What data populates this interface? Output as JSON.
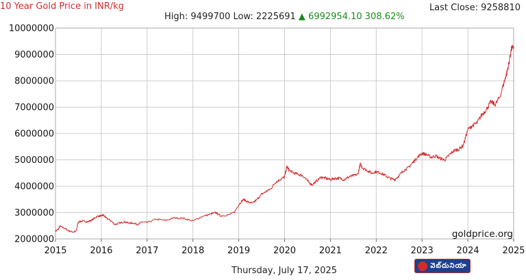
{
  "header": {
    "title": "10 Year Gold Price in INR/kg",
    "last_close_label": "Last Close:",
    "last_close_value": "9258810",
    "high_label": "High:",
    "high_value": "9499700",
    "low_label": "Low:",
    "low_value": "2225691",
    "change_arrow": "▲",
    "change_value": "6992954.10",
    "change_percent": "308.62%"
  },
  "footer": {
    "date": "Thursday, July 17, 2025",
    "site": "goldprice.org",
    "logo_text": "వెబ్‌దునియా"
  },
  "colors": {
    "line": "#d42a2a",
    "title": "#d42a2a",
    "positive": "#1a8a1a",
    "grid": "#cccccc"
  },
  "chart_data": {
    "type": "line",
    "title": "10 Year Gold Price in INR/kg",
    "xlabel": "",
    "ylabel": "",
    "xlim": [
      2015,
      2025
    ],
    "ylim": [
      2000000,
      10000000
    ],
    "x_ticks": [
      "2015",
      "2016",
      "2017",
      "2018",
      "2019",
      "2020",
      "2021",
      "2022",
      "2023",
      "2024",
      "2025"
    ],
    "y_ticks": [
      "2000000",
      "3000000",
      "4000000",
      "5000000",
      "6000000",
      "7000000",
      "8000000",
      "9000000",
      "10000000"
    ],
    "grid": true,
    "series": [
      {
        "x": [
          2015.0,
          2015.05,
          2015.1,
          2015.2,
          2015.3,
          2015.4,
          2015.45,
          2015.5,
          2015.6,
          2015.7,
          2015.8,
          2015.9,
          2016.0,
          2016.05,
          2016.1,
          2016.2,
          2016.3,
          2016.4,
          2016.5,
          2016.6,
          2016.7,
          2016.8,
          2016.9,
          2017.0,
          2017.2,
          2017.4,
          2017.6,
          2017.8,
          2018.0,
          2018.2,
          2018.4,
          2018.5,
          2018.6,
          2018.75,
          2018.9,
          2019.0,
          2019.1,
          2019.2,
          2019.3,
          2019.4,
          2019.5,
          2019.6,
          2019.7,
          2019.8,
          2019.9,
          2020.0,
          2020.05,
          2020.1,
          2020.2,
          2020.3,
          2020.4,
          2020.5,
          2020.6,
          2020.7,
          2020.8,
          2020.9,
          2021.0,
          2021.1,
          2021.2,
          2021.3,
          2021.4,
          2021.5,
          2021.6,
          2021.65,
          2021.7,
          2021.8,
          2021.9,
          2022.0,
          2022.1,
          2022.2,
          2022.3,
          2022.4,
          2022.5,
          2022.6,
          2022.7,
          2022.8,
          2022.9,
          2023.0,
          2023.1,
          2023.2,
          2023.3,
          2023.4,
          2023.5,
          2023.6,
          2023.7,
          2023.8,
          2023.9,
          2024.0,
          2024.1,
          2024.2,
          2024.3,
          2024.4,
          2024.5,
          2024.6,
          2024.7,
          2024.8,
          2024.85,
          2024.9,
          2024.95,
          2025.0
        ],
        "y": [
          2300000,
          2350000,
          2480000,
          2400000,
          2300000,
          2260000,
          2300000,
          2650000,
          2680000,
          2650000,
          2720000,
          2850000,
          2880000,
          2900000,
          2800000,
          2700000,
          2550000,
          2600000,
          2650000,
          2600000,
          2600000,
          2550000,
          2650000,
          2620000,
          2750000,
          2700000,
          2800000,
          2780000,
          2680000,
          2850000,
          2950000,
          3000000,
          2880000,
          2900000,
          3000000,
          3300000,
          3500000,
          3400000,
          3350000,
          3500000,
          3700000,
          3800000,
          3900000,
          4150000,
          4250000,
          4350000,
          4750000,
          4600000,
          4500000,
          4450000,
          4400000,
          4200000,
          4050000,
          4200000,
          4350000,
          4300000,
          4250000,
          4300000,
          4300000,
          4250000,
          4350000,
          4400000,
          4450000,
          4850000,
          4700000,
          4600000,
          4500000,
          4550000,
          4500000,
          4400000,
          4300000,
          4250000,
          4400000,
          4600000,
          4700000,
          4900000,
          5100000,
          5250000,
          5200000,
          5100000,
          5150000,
          5050000,
          5000000,
          5200000,
          5350000,
          5400000,
          5550000,
          6150000,
          6300000,
          6400000,
          6700000,
          6900000,
          7200000,
          7100000,
          7400000,
          8000000,
          8300000,
          8700000,
          9200000,
          9300000
        ]
      }
    ]
  }
}
